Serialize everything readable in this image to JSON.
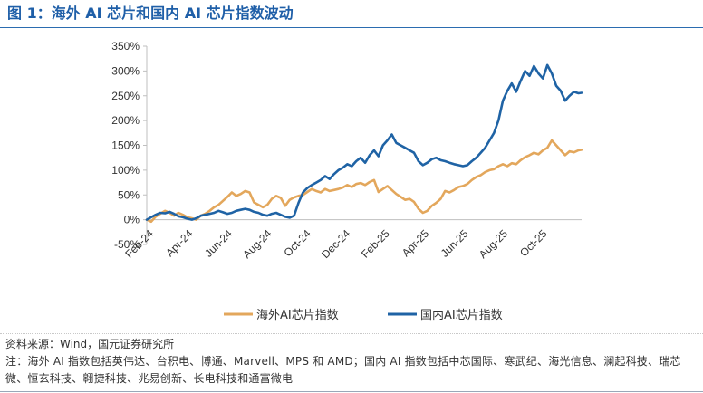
{
  "figure": {
    "title": "图 1：海外 AI 芯片和国内 AI 芯片指数波动",
    "source": "资料来源：Wind，国元证券研究所",
    "note": "注：海外 AI 指数包括英伟达、台积电、博通、Marvell、MPS 和 AMD；国内 AI 指数包括中芯国际、寒武纪、海光信息、澜起科技、瑞芯微、恒玄科技、翱捷科技、兆易创新、长电科技和通富微电"
  },
  "colors": {
    "overseas": "#e3a75c",
    "domestic": "#1f63a5",
    "axis": "#bfbfbf",
    "title": "#1f5fa8",
    "text": "#333333"
  },
  "chart_data": {
    "type": "line",
    "title": "",
    "xlabel": "",
    "ylabel": "",
    "grid": false,
    "legend_position": "bottom",
    "ylim": [
      -50,
      350
    ],
    "y_ticks": [
      -50,
      0,
      50,
      100,
      150,
      200,
      250,
      300,
      350
    ],
    "y_tick_labels": [
      "-50%",
      "0%",
      "50%",
      "100%",
      "150%",
      "200%",
      "250%",
      "300%",
      "350%"
    ],
    "x_tick_labels": [
      "Feb-24",
      "Apr-24",
      "Jun-24",
      "Aug-24",
      "Oct-24",
      "Dec-24",
      "Feb-25",
      "Apr-25",
      "Jun-25",
      "Aug-25",
      "Oct-25"
    ],
    "x_range": [
      "2024-02-01",
      "2025-12-17"
    ],
    "series": [
      {
        "name": "海外AI芯片指数",
        "color": "#e3a75c",
        "points": [
          [
            "2024-02-01",
            0
          ],
          [
            "2024-02-08",
            -4
          ],
          [
            "2024-02-15",
            6
          ],
          [
            "2024-02-22",
            12
          ],
          [
            "2024-03-01",
            18
          ],
          [
            "2024-03-08",
            14
          ],
          [
            "2024-03-15",
            8
          ],
          [
            "2024-03-22",
            14
          ],
          [
            "2024-03-29",
            10
          ],
          [
            "2024-04-05",
            5
          ],
          [
            "2024-04-12",
            3
          ],
          [
            "2024-04-19",
            0
          ],
          [
            "2024-04-26",
            8
          ],
          [
            "2024-05-03",
            12
          ],
          [
            "2024-05-10",
            18
          ],
          [
            "2024-05-17",
            25
          ],
          [
            "2024-05-24",
            30
          ],
          [
            "2024-05-31",
            38
          ],
          [
            "2024-06-07",
            46
          ],
          [
            "2024-06-14",
            55
          ],
          [
            "2024-06-21",
            48
          ],
          [
            "2024-06-28",
            52
          ],
          [
            "2024-07-05",
            58
          ],
          [
            "2024-07-12",
            55
          ],
          [
            "2024-07-19",
            35
          ],
          [
            "2024-07-26",
            30
          ],
          [
            "2024-08-02",
            25
          ],
          [
            "2024-08-09",
            30
          ],
          [
            "2024-08-16",
            42
          ],
          [
            "2024-08-23",
            48
          ],
          [
            "2024-08-30",
            44
          ],
          [
            "2024-09-06",
            28
          ],
          [
            "2024-09-13",
            40
          ],
          [
            "2024-09-20",
            45
          ],
          [
            "2024-09-27",
            48
          ],
          [
            "2024-10-04",
            50
          ],
          [
            "2024-10-11",
            56
          ],
          [
            "2024-10-18",
            62
          ],
          [
            "2024-10-25",
            58
          ],
          [
            "2024-11-01",
            55
          ],
          [
            "2024-11-08",
            62
          ],
          [
            "2024-11-15",
            58
          ],
          [
            "2024-11-22",
            60
          ],
          [
            "2024-11-29",
            62
          ],
          [
            "2024-12-06",
            65
          ],
          [
            "2024-12-13",
            70
          ],
          [
            "2024-12-20",
            66
          ],
          [
            "2024-12-27",
            72
          ],
          [
            "2025-01-03",
            74
          ],
          [
            "2025-01-10",
            70
          ],
          [
            "2025-01-17",
            76
          ],
          [
            "2025-01-24",
            80
          ],
          [
            "2025-01-31",
            56
          ],
          [
            "2025-02-07",
            62
          ],
          [
            "2025-02-14",
            68
          ],
          [
            "2025-02-21",
            60
          ],
          [
            "2025-02-28",
            52
          ],
          [
            "2025-03-07",
            46
          ],
          [
            "2025-03-14",
            40
          ],
          [
            "2025-03-21",
            42
          ],
          [
            "2025-03-28",
            36
          ],
          [
            "2025-04-04",
            22
          ],
          [
            "2025-04-11",
            14
          ],
          [
            "2025-04-18",
            18
          ],
          [
            "2025-04-25",
            28
          ],
          [
            "2025-05-02",
            34
          ],
          [
            "2025-05-09",
            42
          ],
          [
            "2025-05-16",
            58
          ],
          [
            "2025-05-23",
            55
          ],
          [
            "2025-05-30",
            60
          ],
          [
            "2025-06-06",
            66
          ],
          [
            "2025-06-13",
            68
          ],
          [
            "2025-06-20",
            72
          ],
          [
            "2025-06-27",
            80
          ],
          [
            "2025-07-04",
            86
          ],
          [
            "2025-07-11",
            90
          ],
          [
            "2025-07-18",
            96
          ],
          [
            "2025-07-25",
            100
          ],
          [
            "2025-08-01",
            102
          ],
          [
            "2025-08-08",
            108
          ],
          [
            "2025-08-15",
            112
          ],
          [
            "2025-08-22",
            108
          ],
          [
            "2025-08-29",
            114
          ],
          [
            "2025-09-05",
            112
          ],
          [
            "2025-09-12",
            120
          ],
          [
            "2025-09-19",
            126
          ],
          [
            "2025-09-26",
            130
          ],
          [
            "2025-10-03",
            135
          ],
          [
            "2025-10-10",
            132
          ],
          [
            "2025-10-17",
            140
          ],
          [
            "2025-10-24",
            145
          ],
          [
            "2025-10-31",
            160
          ],
          [
            "2025-11-07",
            150
          ],
          [
            "2025-11-14",
            140
          ],
          [
            "2025-11-21",
            130
          ],
          [
            "2025-11-28",
            138
          ],
          [
            "2025-12-05",
            136
          ],
          [
            "2025-12-12",
            140
          ],
          [
            "2025-12-17",
            141
          ]
        ]
      },
      {
        "name": "国内AI芯片指数",
        "color": "#1f63a5",
        "points": [
          [
            "2024-02-01",
            0
          ],
          [
            "2024-02-08",
            5
          ],
          [
            "2024-02-15",
            10
          ],
          [
            "2024-02-22",
            14
          ],
          [
            "2024-03-01",
            13
          ],
          [
            "2024-03-08",
            16
          ],
          [
            "2024-03-15",
            12
          ],
          [
            "2024-03-22",
            7
          ],
          [
            "2024-03-29",
            5
          ],
          [
            "2024-04-05",
            2
          ],
          [
            "2024-04-12",
            0
          ],
          [
            "2024-04-19",
            3
          ],
          [
            "2024-04-26",
            8
          ],
          [
            "2024-05-03",
            10
          ],
          [
            "2024-05-10",
            12
          ],
          [
            "2024-05-17",
            14
          ],
          [
            "2024-05-24",
            18
          ],
          [
            "2024-05-31",
            15
          ],
          [
            "2024-06-07",
            12
          ],
          [
            "2024-06-14",
            14
          ],
          [
            "2024-06-21",
            18
          ],
          [
            "2024-06-28",
            20
          ],
          [
            "2024-07-05",
            22
          ],
          [
            "2024-07-12",
            20
          ],
          [
            "2024-07-19",
            16
          ],
          [
            "2024-07-26",
            14
          ],
          [
            "2024-08-02",
            10
          ],
          [
            "2024-08-09",
            8
          ],
          [
            "2024-08-16",
            12
          ],
          [
            "2024-08-23",
            14
          ],
          [
            "2024-08-30",
            10
          ],
          [
            "2024-09-06",
            6
          ],
          [
            "2024-09-13",
            4
          ],
          [
            "2024-09-20",
            8
          ],
          [
            "2024-09-27",
            34
          ],
          [
            "2024-10-04",
            55
          ],
          [
            "2024-10-11",
            64
          ],
          [
            "2024-10-18",
            70
          ],
          [
            "2024-10-25",
            75
          ],
          [
            "2024-11-01",
            80
          ],
          [
            "2024-11-08",
            88
          ],
          [
            "2024-11-15",
            82
          ],
          [
            "2024-11-22",
            92
          ],
          [
            "2024-11-29",
            100
          ],
          [
            "2024-12-06",
            105
          ],
          [
            "2024-12-13",
            112
          ],
          [
            "2024-12-20",
            108
          ],
          [
            "2024-12-27",
            118
          ],
          [
            "2025-01-03",
            125
          ],
          [
            "2025-01-10",
            115
          ],
          [
            "2025-01-17",
            130
          ],
          [
            "2025-01-24",
            140
          ],
          [
            "2025-01-31",
            128
          ],
          [
            "2025-02-07",
            150
          ],
          [
            "2025-02-14",
            160
          ],
          [
            "2025-02-21",
            172
          ],
          [
            "2025-02-28",
            155
          ],
          [
            "2025-03-07",
            150
          ],
          [
            "2025-03-14",
            145
          ],
          [
            "2025-03-21",
            140
          ],
          [
            "2025-03-28",
            135
          ],
          [
            "2025-04-04",
            118
          ],
          [
            "2025-04-11",
            110
          ],
          [
            "2025-04-18",
            115
          ],
          [
            "2025-04-25",
            122
          ],
          [
            "2025-05-02",
            125
          ],
          [
            "2025-05-09",
            120
          ],
          [
            "2025-05-16",
            118
          ],
          [
            "2025-05-23",
            115
          ],
          [
            "2025-05-30",
            112
          ],
          [
            "2025-06-06",
            110
          ],
          [
            "2025-06-13",
            108
          ],
          [
            "2025-06-20",
            110
          ],
          [
            "2025-06-27",
            118
          ],
          [
            "2025-07-04",
            125
          ],
          [
            "2025-07-11",
            135
          ],
          [
            "2025-07-18",
            145
          ],
          [
            "2025-07-25",
            160
          ],
          [
            "2025-08-01",
            175
          ],
          [
            "2025-08-08",
            200
          ],
          [
            "2025-08-15",
            240
          ],
          [
            "2025-08-22",
            260
          ],
          [
            "2025-08-29",
            275
          ],
          [
            "2025-09-05",
            258
          ],
          [
            "2025-09-12",
            280
          ],
          [
            "2025-09-19",
            300
          ],
          [
            "2025-09-26",
            290
          ],
          [
            "2025-10-03",
            310
          ],
          [
            "2025-10-10",
            295
          ],
          [
            "2025-10-17",
            285
          ],
          [
            "2025-10-24",
            312
          ],
          [
            "2025-10-31",
            295
          ],
          [
            "2025-11-07",
            270
          ],
          [
            "2025-11-14",
            260
          ],
          [
            "2025-11-21",
            240
          ],
          [
            "2025-11-28",
            250
          ],
          [
            "2025-12-05",
            258
          ],
          [
            "2025-12-12",
            255
          ],
          [
            "2025-12-17",
            256
          ]
        ]
      }
    ]
  }
}
